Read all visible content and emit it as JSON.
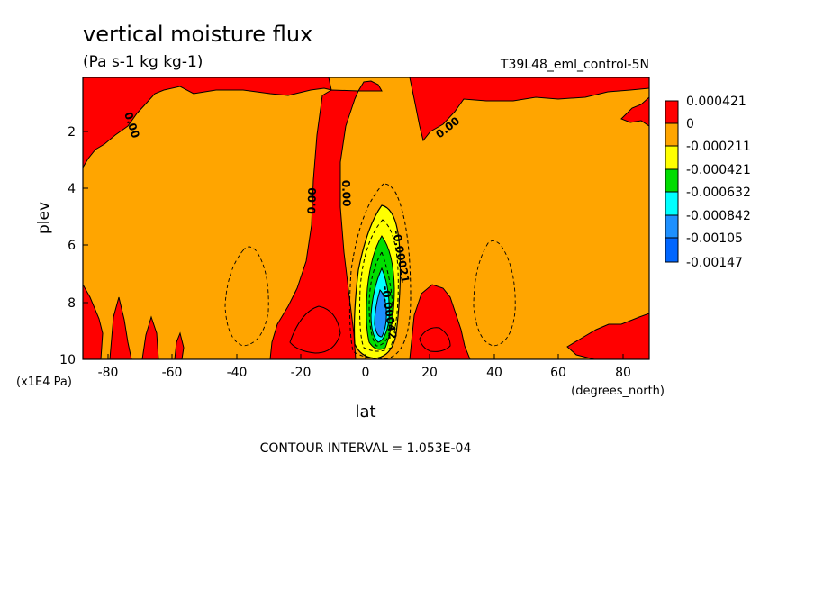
{
  "chart_data": {
    "type": "contour",
    "title": "vertical moisture flux",
    "units": "(Pa s-1 kg kg-1)",
    "dataset": "T39L48_eml_control-5N",
    "xlabel": "lat",
    "xunits": "(degrees_north)",
    "ylabel": "plev",
    "yunits": "(x1E4 Pa)",
    "xlim": [
      -88,
      88
    ],
    "ylim": [
      0.2,
      10
    ],
    "y_inverted": true,
    "x_ticks": [
      "-80",
      "-60",
      "-40",
      "-20",
      "0",
      "20",
      "40",
      "60",
      "80"
    ],
    "y_ticks": [
      "2",
      "4",
      "6",
      "8",
      "10"
    ],
    "legend_levels": [
      "0.000421",
      "0",
      "-0.000211",
      "-0.000421",
      "-0.000632",
      "-0.000842",
      "-0.00105",
      "-0.00147"
    ],
    "legend_colors": [
      "#ff0000",
      "#ffa500",
      "#ffff00",
      "#00dd00",
      "#00ffff",
      "#1e90ff",
      "#0066ff"
    ],
    "contour_labels": [
      {
        "text": "0.00",
        "lat": -76,
        "plev": 1.2
      },
      {
        "text": "0.00",
        "lat": -16,
        "plev": 4.3
      },
      {
        "text": "0.00",
        "lat": -7,
        "plev": 4.1
      },
      {
        "text": "0.00",
        "lat": 30,
        "plev": 2.0
      },
      {
        "text": "-0.00021",
        "lat": 12,
        "plev": 6.5
      },
      {
        "text": "-0.00042",
        "lat": 5,
        "plev": 8.7
      }
    ],
    "contour_interval": "CONTOUR INTERVAL = 1.053E-04"
  }
}
